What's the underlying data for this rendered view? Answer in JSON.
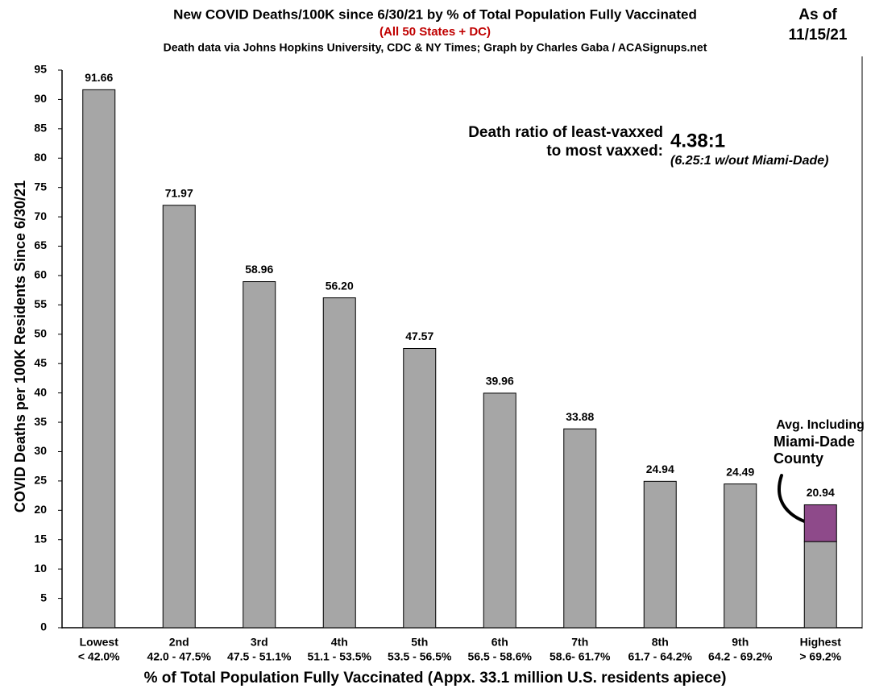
{
  "chart_data": {
    "type": "bar",
    "title": "New COVID Deaths/100K since 6/30/21 by % of Total Population Fully Vaccinated",
    "subtitle": "(All 50 States + DC)",
    "source": "Death data via Johns Hopkins University, CDC & NY Times; Graph by Charles Gaba / ACASignups.net",
    "date_label": "As of",
    "date": "11/15/21",
    "x_label": "% of Total Population Fully Vaccinated (Appx. 33.1 million U.S. residents apiece)",
    "y_label": "COVID Deaths per 100K Residents Since 6/30/21",
    "categories": [
      "Lowest",
      "2nd",
      "3rd",
      "4th",
      "5th",
      "6th",
      "7th",
      "8th",
      "9th",
      "Highest"
    ],
    "category_ranges": [
      "< 42.0%",
      "42.0 - 47.5%",
      "47.5 - 51.1%",
      "51.1 - 53.5%",
      "53.5 - 56.5%",
      "56.5 - 58.6%",
      "58.6- 61.7%",
      "61.7 - 64.2%",
      "64.2 - 69.2%",
      "> 69.2%"
    ],
    "series": [
      {
        "color": "#a6a6a6",
        "values": [
          91.66,
          71.97,
          58.96,
          56.2,
          47.57,
          39.96,
          33.88,
          24.94,
          24.49,
          14.67
        ]
      },
      {
        "color": "#8e4a8a",
        "values": [
          null,
          null,
          null,
          null,
          null,
          null,
          null,
          null,
          null,
          6.27
        ]
      }
    ],
    "value_labels": [
      "91.66",
      "71.97",
      "58.96",
      "56.20",
      "47.57",
      "39.96",
      "33.88",
      "24.94",
      "24.49",
      "20.94"
    ],
    "ylim": [
      0,
      95
    ],
    "yticks": [
      0,
      5,
      10,
      15,
      20,
      25,
      30,
      35,
      40,
      45,
      50,
      55,
      60,
      65,
      70,
      75,
      80,
      85,
      90,
      95
    ],
    "annotations": {
      "ratio_line1": "Death ratio of least-vaxxed",
      "ratio_line2": "to most vaxxed:",
      "ratio": "4.38:1",
      "ratio_note": "(6.25:1 w/out Miami-Dade)",
      "note_line1": "Avg. Including",
      "note_line2": "Miami-Dade",
      "note_line3": "County"
    }
  }
}
